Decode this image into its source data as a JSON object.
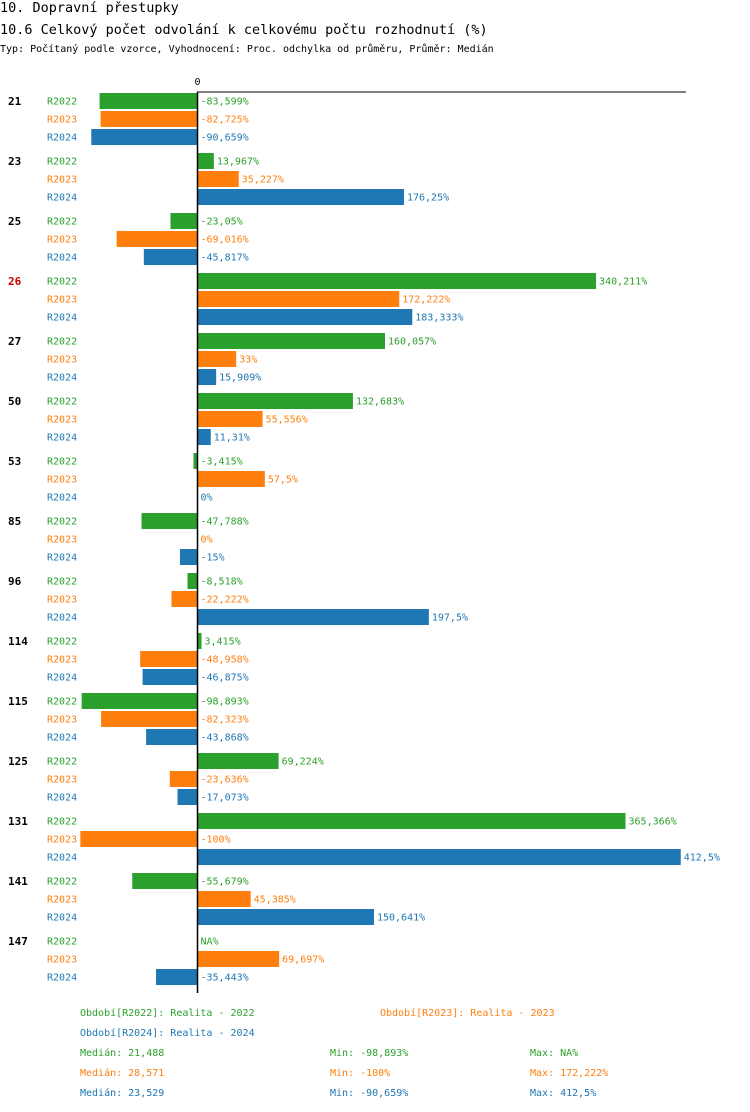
{
  "header": {
    "title": "10. Dopravní přestupky",
    "subtitle": "10.6 Celkový počet odvolání k celkovému počtu rozhodnutí (%)",
    "type_line": "Typ: Počítaný podle vzorce, Vyhodnocení: Proc. odchylka od průměru, Průměr: Medián"
  },
  "colors": {
    "R2022": "#2ca02c",
    "R2023": "#ff7f0e",
    "R2024": "#1f77b4",
    "highlight": "#cc0000",
    "axis": "#000000"
  },
  "chart_data": {
    "type": "bar",
    "orientation": "horizontal",
    "axis_zero_label": "0",
    "xlim": [
      -100,
      412.5
    ],
    "series_names": [
      "R2022",
      "R2023",
      "R2024"
    ],
    "highlight_group": "26",
    "groups": [
      {
        "label": "21",
        "values": [
          -83.599,
          -82.725,
          -90.659
        ],
        "labels": [
          "-83,599%",
          "-82,725%",
          "-90,659%"
        ]
      },
      {
        "label": "23",
        "values": [
          13.967,
          35.227,
          176.25
        ],
        "labels": [
          "13,967%",
          "35,227%",
          "176,25%"
        ]
      },
      {
        "label": "25",
        "values": [
          -23.05,
          -69.016,
          -45.817
        ],
        "labels": [
          "-23,05%",
          "-69,016%",
          "-45,817%"
        ]
      },
      {
        "label": "26",
        "values": [
          340.211,
          172.222,
          183.333
        ],
        "labels": [
          "340,211%",
          "172,222%",
          "183,333%"
        ]
      },
      {
        "label": "27",
        "values": [
          160.057,
          33,
          15.909
        ],
        "labels": [
          "160,057%",
          "33%",
          "15,909%"
        ]
      },
      {
        "label": "50",
        "values": [
          132.683,
          55.556,
          11.31
        ],
        "labels": [
          "132,683%",
          "55,556%",
          "11,31%"
        ]
      },
      {
        "label": "53",
        "values": [
          -3.415,
          57.5,
          0
        ],
        "labels": [
          "-3,415%",
          "57,5%",
          "0%"
        ]
      },
      {
        "label": "85",
        "values": [
          -47.788,
          0,
          -15
        ],
        "labels": [
          "-47,788%",
          "0%",
          "-15%"
        ]
      },
      {
        "label": "96",
        "values": [
          -8.518,
          -22.222,
          197.5
        ],
        "labels": [
          "-8,518%",
          "-22,222%",
          "197,5%"
        ]
      },
      {
        "label": "114",
        "values": [
          3.415,
          -48.958,
          -46.875
        ],
        "labels": [
          "3,415%",
          "-48,958%",
          "-46,875%"
        ]
      },
      {
        "label": "115",
        "values": [
          -98.893,
          -82.323,
          -43.868
        ],
        "labels": [
          "-98,893%",
          "-82,323%",
          "-43,868%"
        ]
      },
      {
        "label": "125",
        "values": [
          69.224,
          -23.636,
          -17.073
        ],
        "labels": [
          "69,224%",
          "-23,636%",
          "-17,073%"
        ]
      },
      {
        "label": "131",
        "values": [
          365.366,
          -100,
          412.5
        ],
        "labels": [
          "365,366%",
          "-100%",
          "412,5%"
        ]
      },
      {
        "label": "141",
        "values": [
          -55.679,
          45.385,
          150.641
        ],
        "labels": [
          "-55,679%",
          "45,385%",
          "150,641%"
        ]
      },
      {
        "label": "147",
        "values": [
          null,
          69.697,
          -35.443
        ],
        "labels": [
          "NA%",
          "69,697%",
          "-35,443%"
        ]
      }
    ]
  },
  "legend": {
    "periods": [
      {
        "series": "R2022",
        "text": "Období[R2022]: Realita - 2022"
      },
      {
        "series": "R2023",
        "text": "Období[R2023]: Realita - 2023"
      },
      {
        "series": "R2024",
        "text": "Období[R2024]: Realita - 2024"
      }
    ],
    "stats": [
      {
        "series": "R2022",
        "median": "Medián: 21,488",
        "min": "Min: -98,893%",
        "max": "Max: NA%"
      },
      {
        "series": "R2023",
        "median": "Medián: 28,571",
        "min": "Min: -100%",
        "max": "Max: 172,222%"
      },
      {
        "series": "R2024",
        "median": "Medián: 23,529",
        "min": "Min: -90,659%",
        "max": "Max: 412,5%"
      }
    ]
  }
}
